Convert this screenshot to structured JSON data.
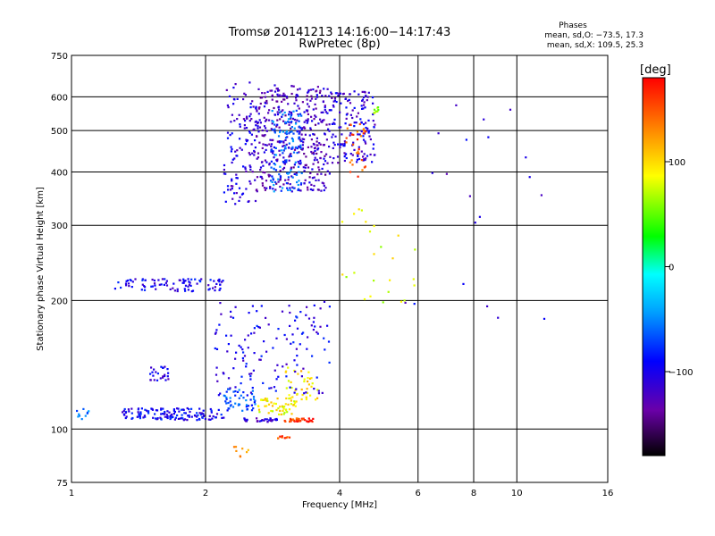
{
  "chart_data": {
    "type": "scatter",
    "title": "Tromsø 20141213 14:16:00−14:17:43",
    "subtitle": "RwPretec (8p)",
    "info": {
      "heading": "Phases",
      "line1": "mean, sd,O: −73.5, 17.3",
      "line2": "mean, sd,X: 109.5, 25.3"
    },
    "xlabel": "Frequency [MHz]",
    "ylabel": "Stationary phase Virtual Height [km]",
    "x_scale": "log",
    "y_scale": "log",
    "xlim": [
      1,
      16
    ],
    "ylim": [
      75,
      750
    ],
    "x_ticks": [
      1,
      2,
      4,
      6,
      8,
      10,
      16
    ],
    "y_ticks": [
      75,
      100,
      200,
      300,
      400,
      500,
      600,
      750
    ],
    "grid": true,
    "colorbar": {
      "label": "[deg]",
      "range": [
        -180,
        180
      ],
      "ticks": [
        100,
        0,
        -100
      ]
    },
    "clusters": [
      {
        "f0": 2.2,
        "f1": 2.6,
        "h0": 335,
        "h1": 650,
        "phase": -110,
        "n": 120
      },
      {
        "f0": 2.6,
        "f1": 3.8,
        "h0": 360,
        "h1": 640,
        "phase": -120,
        "n": 420
      },
      {
        "f0": 2.8,
        "f1": 3.3,
        "h0": 360,
        "h1": 560,
        "phase": -60,
        "n": 120
      },
      {
        "f0": 3.8,
        "f1": 4.8,
        "h0": 420,
        "h1": 620,
        "phase": -110,
        "n": 150
      },
      {
        "f0": 4.1,
        "f1": 4.6,
        "h0": 390,
        "h1": 520,
        "phase": 150,
        "n": 30
      },
      {
        "f0": 4.7,
        "f1": 4.9,
        "h0": 540,
        "h1": 570,
        "phase": 70,
        "n": 8
      },
      {
        "f0": 1.25,
        "f1": 2.2,
        "h0": 210,
        "h1": 225,
        "phase": -100,
        "n": 90
      },
      {
        "f0": 1.3,
        "f1": 2.2,
        "h0": 105,
        "h1": 112,
        "phase": -95,
        "n": 140
      },
      {
        "f0": 2.2,
        "f1": 2.6,
        "h0": 110,
        "h1": 125,
        "phase": -70,
        "n": 50
      },
      {
        "f0": 2.4,
        "f1": 2.9,
        "h0": 104,
        "h1": 106,
        "phase": -110,
        "n": 30
      },
      {
        "f0": 2.6,
        "f1": 3.2,
        "h0": 108,
        "h1": 118,
        "phase": 90,
        "n": 50
      },
      {
        "f0": 3.0,
        "f1": 3.5,
        "h0": 104,
        "h1": 106,
        "phase": 160,
        "n": 35
      },
      {
        "f0": 2.9,
        "f1": 3.1,
        "h0": 95,
        "h1": 97,
        "phase": 150,
        "n": 10
      },
      {
        "f0": 3.0,
        "f1": 3.6,
        "h0": 115,
        "h1": 140,
        "phase": 100,
        "n": 40
      },
      {
        "f0": 1.5,
        "f1": 1.65,
        "h0": 130,
        "h1": 140,
        "phase": -105,
        "n": 25
      },
      {
        "f0": 2.1,
        "f1": 3.8,
        "h0": 120,
        "h1": 200,
        "phase": -100,
        "n": 140
      },
      {
        "f0": 2.3,
        "f1": 2.5,
        "h0": 86,
        "h1": 92,
        "phase": 130,
        "n": 8
      },
      {
        "f0": 1.02,
        "f1": 1.1,
        "h0": 105,
        "h1": 112,
        "phase": -50,
        "n": 10
      },
      {
        "f0": 4.0,
        "f1": 6.0,
        "h0": 190,
        "h1": 330,
        "phase": 80,
        "n": 25
      },
      {
        "f0": 5.5,
        "f1": 12.0,
        "h0": 180,
        "h1": 650,
        "phase": -110,
        "n": 20
      }
    ]
  }
}
